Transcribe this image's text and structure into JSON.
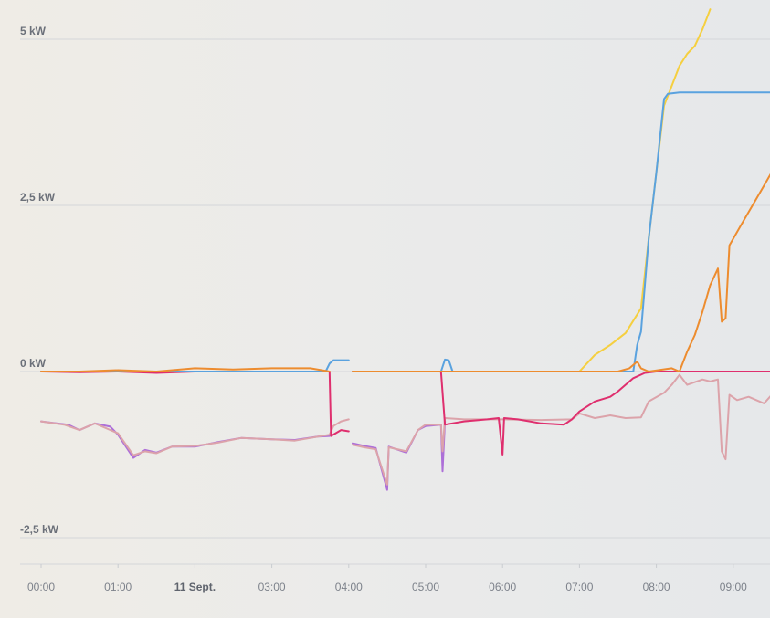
{
  "chart_data": {
    "type": "line",
    "title": "",
    "xlabel": "",
    "ylabel": "",
    "x_unit": "hour",
    "xlim": [
      -0.15,
      9.5
    ],
    "ylim": [
      -2.75,
      5.25
    ],
    "yticks": [
      {
        "value": 5,
        "label": "5 kW"
      },
      {
        "value": 2.5,
        "label": "2,5 kW"
      },
      {
        "value": 0,
        "label": "0 kW"
      },
      {
        "value": -2.5,
        "label": "-2,5 kW"
      }
    ],
    "xticks": [
      {
        "value": 0,
        "label": "00:00",
        "bold": false
      },
      {
        "value": 1,
        "label": "01:00",
        "bold": false
      },
      {
        "value": 2,
        "label": "11 Sept.",
        "bold": true
      },
      {
        "value": 3,
        "label": "03:00",
        "bold": false
      },
      {
        "value": 4,
        "label": "04:00",
        "bold": false
      },
      {
        "value": 5,
        "label": "05:00",
        "bold": false
      },
      {
        "value": 6,
        "label": "06:00",
        "bold": false
      },
      {
        "value": 7,
        "label": "07:00",
        "bold": false
      },
      {
        "value": 8,
        "label": "08:00",
        "bold": false
      },
      {
        "value": 9,
        "label": "09:00",
        "bold": false
      }
    ],
    "grid": true,
    "series": [
      {
        "color": "#ad6fd8",
        "points": [
          [
            0,
            -0.75
          ],
          [
            0.2,
            -0.78
          ],
          [
            0.35,
            -0.8
          ],
          [
            0.5,
            -0.88
          ],
          [
            0.7,
            -0.78
          ],
          [
            0.9,
            -0.83
          ],
          [
            1.0,
            -0.95
          ],
          [
            1.2,
            -1.3
          ],
          [
            1.35,
            -1.18
          ],
          [
            1.5,
            -1.22
          ],
          [
            1.7,
            -1.13
          ],
          [
            2.0,
            -1.13
          ],
          [
            2.3,
            -1.06
          ],
          [
            2.6,
            -1.0
          ],
          [
            3.0,
            -1.02
          ],
          [
            3.3,
            -1.03
          ],
          [
            3.6,
            -0.98
          ],
          [
            3.75,
            -0.97
          ],
          [
            3.77,
            null
          ],
          [
            4.05,
            -1.08
          ],
          [
            4.2,
            -1.12
          ],
          [
            4.35,
            -1.15
          ],
          [
            4.5,
            -1.78
          ],
          [
            4.52,
            -1.13
          ],
          [
            4.75,
            -1.22
          ],
          [
            4.9,
            -0.88
          ],
          [
            5.0,
            -0.82
          ],
          [
            5.2,
            -0.8
          ],
          [
            5.22,
            -1.5
          ],
          [
            5.25,
            -0.75
          ]
        ]
      },
      {
        "color": "#dca3aa",
        "points": [
          [
            0,
            -0.75
          ],
          [
            0.3,
            -0.8
          ],
          [
            0.5,
            -0.88
          ],
          [
            0.7,
            -0.78
          ],
          [
            1.0,
            -0.93
          ],
          [
            1.2,
            -1.26
          ],
          [
            1.35,
            -1.2
          ],
          [
            1.5,
            -1.23
          ],
          [
            1.7,
            -1.13
          ],
          [
            2.0,
            -1.12
          ],
          [
            2.3,
            -1.07
          ],
          [
            2.6,
            -1.0
          ],
          [
            3.0,
            -1.02
          ],
          [
            3.3,
            -1.04
          ],
          [
            3.6,
            -0.98
          ],
          [
            3.75,
            -0.95
          ],
          [
            3.8,
            -0.82
          ],
          [
            3.9,
            -0.75
          ],
          [
            4.0,
            -0.72
          ],
          [
            4.02,
            null
          ],
          [
            4.05,
            -1.1
          ],
          [
            4.2,
            -1.14
          ],
          [
            4.35,
            -1.17
          ],
          [
            4.5,
            -1.7
          ],
          [
            4.52,
            -1.14
          ],
          [
            4.75,
            -1.2
          ],
          [
            4.9,
            -0.88
          ],
          [
            5.0,
            -0.8
          ],
          [
            5.2,
            -0.8
          ],
          [
            5.22,
            -1.2
          ],
          [
            5.25,
            -0.7
          ],
          [
            5.5,
            -0.72
          ],
          [
            6.0,
            -0.72
          ],
          [
            6.5,
            -0.73
          ],
          [
            6.9,
            -0.72
          ],
          [
            7.0,
            -0.63
          ],
          [
            7.2,
            -0.7
          ],
          [
            7.4,
            -0.66
          ],
          [
            7.6,
            -0.7
          ],
          [
            7.8,
            -0.69
          ],
          [
            7.9,
            -0.45
          ],
          [
            8.1,
            -0.32
          ],
          [
            8.2,
            -0.2
          ],
          [
            8.3,
            -0.05
          ],
          [
            8.4,
            -0.2
          ],
          [
            8.6,
            -0.12
          ],
          [
            8.7,
            -0.15
          ],
          [
            8.8,
            -0.12
          ],
          [
            8.85,
            -1.2
          ],
          [
            8.9,
            -1.32
          ],
          [
            8.95,
            -0.35
          ],
          [
            9.05,
            -0.43
          ],
          [
            9.2,
            -0.38
          ],
          [
            9.4,
            -0.48
          ],
          [
            9.5,
            -0.35
          ]
        ]
      },
      {
        "color": "#df2f6e",
        "points": [
          [
            0,
            0
          ],
          [
            0.5,
            -0.01
          ],
          [
            1.0,
            0
          ],
          [
            1.5,
            -0.02
          ],
          [
            2.0,
            0
          ],
          [
            2.5,
            0
          ],
          [
            3.0,
            0
          ],
          [
            3.5,
            0
          ],
          [
            3.75,
            0
          ],
          [
            3.77,
            -0.97
          ],
          [
            3.9,
            -0.88
          ],
          [
            4.0,
            -0.9
          ],
          [
            4.02,
            null
          ],
          [
            4.05,
            0
          ],
          [
            4.5,
            0
          ],
          [
            5.0,
            0
          ],
          [
            5.2,
            0
          ],
          [
            5.25,
            -0.8
          ],
          [
            5.5,
            -0.75
          ],
          [
            5.8,
            -0.72
          ],
          [
            5.95,
            -0.7
          ],
          [
            6.0,
            -1.25
          ],
          [
            6.02,
            -0.7
          ],
          [
            6.2,
            -0.72
          ],
          [
            6.5,
            -0.78
          ],
          [
            6.8,
            -0.8
          ],
          [
            6.9,
            -0.72
          ],
          [
            7.0,
            -0.6
          ],
          [
            7.2,
            -0.45
          ],
          [
            7.4,
            -0.38
          ],
          [
            7.5,
            -0.3
          ],
          [
            7.7,
            -0.1
          ],
          [
            7.85,
            -0.02
          ],
          [
            8.0,
            0
          ],
          [
            8.5,
            0
          ],
          [
            9.0,
            0
          ],
          [
            9.5,
            0
          ]
        ]
      },
      {
        "color": "#f5cf40",
        "points": [
          [
            7.0,
            0
          ],
          [
            7.2,
            0.25
          ],
          [
            7.4,
            0.4
          ],
          [
            7.6,
            0.58
          ],
          [
            7.8,
            0.95
          ],
          [
            7.9,
            2.0
          ],
          [
            8.0,
            3.0
          ],
          [
            8.1,
            4.0
          ],
          [
            8.3,
            4.6
          ],
          [
            8.4,
            4.78
          ],
          [
            8.5,
            4.9
          ],
          [
            8.6,
            5.15
          ],
          [
            8.7,
            5.45
          ]
        ]
      },
      {
        "color": "#5aa2df",
        "points": [
          [
            0,
            0
          ],
          [
            0.5,
            0
          ],
          [
            1.0,
            0
          ],
          [
            1.5,
            0
          ],
          [
            2.0,
            0
          ],
          [
            2.5,
            0
          ],
          [
            3.0,
            0
          ],
          [
            3.5,
            0
          ],
          [
            3.7,
            0
          ],
          [
            3.75,
            0.12
          ],
          [
            3.8,
            0.17
          ],
          [
            4.0,
            0.17
          ],
          [
            4.02,
            null
          ],
          [
            4.05,
            0
          ],
          [
            4.5,
            0
          ],
          [
            5.0,
            0
          ],
          [
            5.2,
            0
          ],
          [
            5.25,
            0.18
          ],
          [
            5.3,
            0.17
          ],
          [
            5.35,
            0
          ],
          [
            6.0,
            0
          ],
          [
            6.5,
            0
          ],
          [
            7.0,
            0
          ],
          [
            7.5,
            0
          ],
          [
            7.7,
            0
          ],
          [
            7.75,
            0.4
          ],
          [
            7.8,
            0.6
          ],
          [
            7.9,
            2.0
          ],
          [
            8.0,
            3.0
          ],
          [
            8.1,
            4.1
          ],
          [
            8.15,
            4.18
          ],
          [
            8.3,
            4.2
          ],
          [
            8.5,
            4.2
          ],
          [
            8.7,
            4.2
          ],
          [
            9.0,
            4.2
          ],
          [
            9.5,
            4.2
          ]
        ]
      },
      {
        "color": "#ed8c2f",
        "points": [
          [
            0,
            0
          ],
          [
            0.5,
            0
          ],
          [
            1.0,
            0.02
          ],
          [
            1.5,
            0
          ],
          [
            2.0,
            0.05
          ],
          [
            2.5,
            0.03
          ],
          [
            3.0,
            0.05
          ],
          [
            3.5,
            0.05
          ],
          [
            3.75,
            0
          ],
          [
            3.77,
            null
          ],
          [
            4.05,
            0
          ],
          [
            4.5,
            0
          ],
          [
            5.0,
            0
          ],
          [
            5.5,
            0
          ],
          [
            6.0,
            0
          ],
          [
            6.5,
            0
          ],
          [
            7.0,
            0
          ],
          [
            7.5,
            0
          ],
          [
            7.65,
            0.05
          ],
          [
            7.75,
            0.15
          ],
          [
            7.8,
            0.05
          ],
          [
            7.9,
            0
          ],
          [
            8.2,
            0.05
          ],
          [
            8.3,
            0
          ],
          [
            8.4,
            0.3
          ],
          [
            8.5,
            0.55
          ],
          [
            8.6,
            0.9
          ],
          [
            8.7,
            1.3
          ],
          [
            8.8,
            1.55
          ],
          [
            8.85,
            0.75
          ],
          [
            8.9,
            0.8
          ],
          [
            8.95,
            1.9
          ],
          [
            9.1,
            2.2
          ],
          [
            9.3,
            2.6
          ],
          [
            9.4,
            2.8
          ],
          [
            9.5,
            3.0
          ]
        ]
      }
    ]
  }
}
